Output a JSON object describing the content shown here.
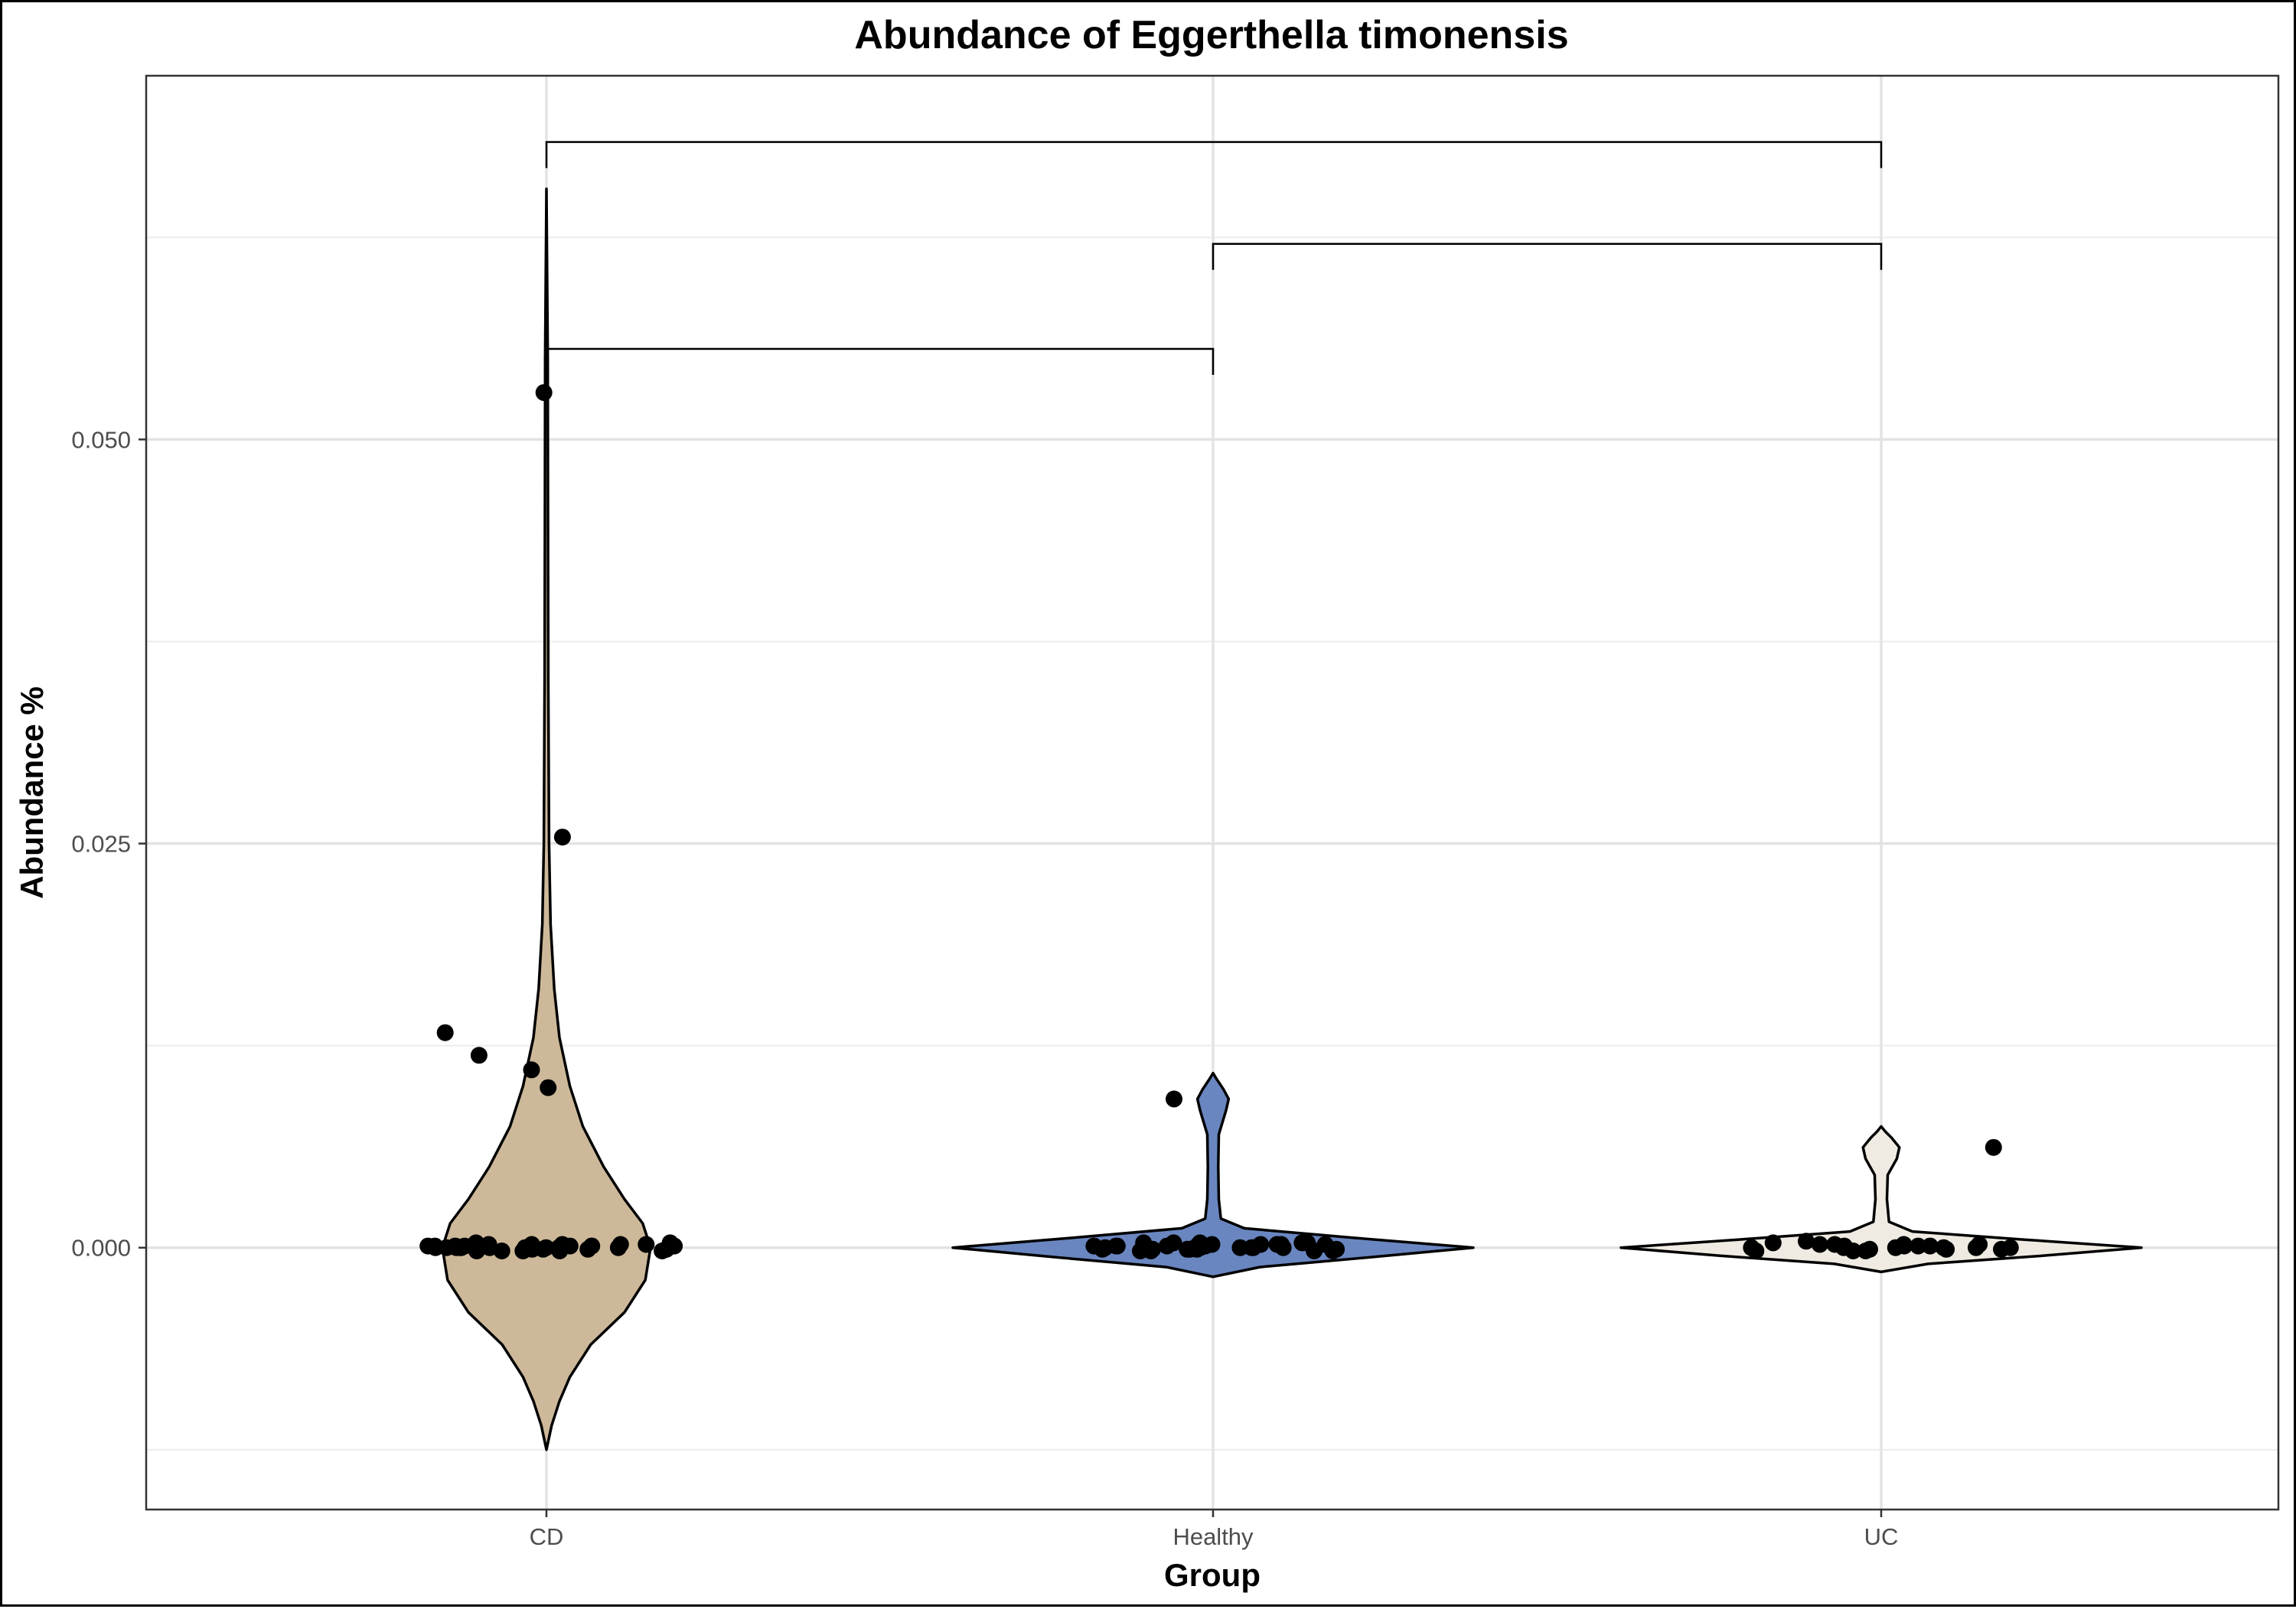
{
  "chart_data": {
    "type": "violin",
    "title": "Abundance of Eggerthella timonensis",
    "xlabel": "Group",
    "ylabel": "Abundance %",
    "categories": [
      "CD",
      "Healthy",
      "UC"
    ],
    "ylim": [
      -0.0162,
      0.0725
    ],
    "yticks": [
      0.0,
      0.025,
      0.05
    ],
    "ytick_labels": [
      "0.000",
      "0.025",
      "0.050"
    ],
    "grid": true,
    "legend": "none",
    "colors": {
      "CD": "#cdb99a",
      "Healthy": "#6a86c0",
      "UC": "#efebe2"
    },
    "violins": [
      {
        "group": "CD",
        "range": [
          -0.0125,
          0.0655
        ],
        "profile": [
          [
            -0.0125,
            0.0
          ],
          [
            -0.011,
            0.02
          ],
          [
            -0.0095,
            0.05
          ],
          [
            -0.008,
            0.09
          ],
          [
            -0.006,
            0.17
          ],
          [
            -0.004,
            0.3
          ],
          [
            -0.002,
            0.38
          ],
          [
            0.0,
            0.4
          ],
          [
            0.0015,
            0.37
          ],
          [
            0.003,
            0.3
          ],
          [
            0.005,
            0.22
          ],
          [
            0.0075,
            0.14
          ],
          [
            0.01,
            0.09
          ],
          [
            0.013,
            0.05
          ],
          [
            0.016,
            0.03
          ],
          [
            0.02,
            0.016
          ],
          [
            0.025,
            0.01
          ],
          [
            0.035,
            0.007
          ],
          [
            0.045,
            0.006
          ],
          [
            0.055,
            0.005
          ],
          [
            0.0655,
            0.0
          ]
        ]
      },
      {
        "group": "Healthy",
        "range": [
          -0.0018,
          0.0108
        ],
        "profile": [
          [
            -0.0018,
            0.0
          ],
          [
            -0.0012,
            0.18
          ],
          [
            -0.0006,
            0.6
          ],
          [
            0.0,
            1.0
          ],
          [
            0.0006,
            0.55
          ],
          [
            0.0012,
            0.12
          ],
          [
            0.0018,
            0.03
          ],
          [
            0.003,
            0.022
          ],
          [
            0.005,
            0.02
          ],
          [
            0.007,
            0.022
          ],
          [
            0.0085,
            0.05
          ],
          [
            0.0092,
            0.06
          ],
          [
            0.0098,
            0.04
          ],
          [
            0.0104,
            0.015
          ],
          [
            0.0108,
            0.0
          ]
        ]
      },
      {
        "group": "UC",
        "range": [
          -0.0015,
          0.0075
        ],
        "profile": [
          [
            -0.0015,
            0.0
          ],
          [
            -0.001,
            0.18
          ],
          [
            -0.0005,
            0.62
          ],
          [
            0.0,
            1.0
          ],
          [
            0.0005,
            0.55
          ],
          [
            0.001,
            0.12
          ],
          [
            0.0016,
            0.03
          ],
          [
            0.003,
            0.022
          ],
          [
            0.0045,
            0.025
          ],
          [
            0.0055,
            0.06
          ],
          [
            0.0062,
            0.07
          ],
          [
            0.0068,
            0.04
          ],
          [
            0.0072,
            0.015
          ],
          [
            0.0075,
            0.0
          ]
        ]
      }
    ],
    "points": [
      {
        "group": "CD",
        "values": [
          0.0529,
          0.0254,
          0.0133,
          0.0119,
          0.011,
          0.0099,
          0.0,
          0.0002,
          0.0001,
          -0.0002,
          0.0,
          0.0002,
          -0.0001,
          0.0001,
          0.0,
          -0.0002,
          0.0001,
          0.0,
          0.0002,
          -0.0001,
          0.0,
          0.0001,
          -0.0002,
          0.0003,
          0.0,
          0.0002,
          -0.0001,
          0.0001,
          0.0,
          -0.0002,
          0.0001,
          0.0002,
          0.0,
          0.0001,
          -0.0001,
          0.0003,
          0.0,
          -0.0002,
          0.0001,
          0.0
        ]
      },
      {
        "group": "Healthy",
        "values": [
          0.0092,
          0.0003,
          -0.0001,
          0.0002,
          0.0,
          -0.0002,
          0.0001,
          0.0003,
          0.0,
          -0.0001,
          0.0002,
          0.0,
          0.0001,
          -0.0002,
          0.0003,
          0.0,
          0.0001,
          -0.0001,
          0.0002,
          0.0,
          -0.0002,
          0.0001,
          0.0,
          0.0002,
          -0.0001,
          0.0003,
          0.0,
          0.0001,
          -0.0002,
          0.0,
          0.0002,
          0.0001,
          -0.0001,
          0.0,
          0.0003,
          -0.0001
        ]
      },
      {
        "group": "UC",
        "values": [
          0.0062,
          0.0,
          -0.0001,
          0.0001,
          0.0,
          -0.0002,
          0.0002,
          0.0,
          0.0004,
          -0.0002,
          0.0001,
          0.0,
          0.0002,
          -0.0001,
          0.0,
          0.0001,
          0.0002,
          -0.0002,
          0.0003,
          0.0,
          -0.0001,
          0.0002,
          0.0001
        ]
      }
    ],
    "comparisons": [
      {
        "from": "CD",
        "to": "Healthy",
        "y": 0.0556
      },
      {
        "from": "Healthy",
        "to": "UC",
        "y": 0.0621
      },
      {
        "from": "CD",
        "to": "UC",
        "y": 0.0684
      }
    ]
  }
}
